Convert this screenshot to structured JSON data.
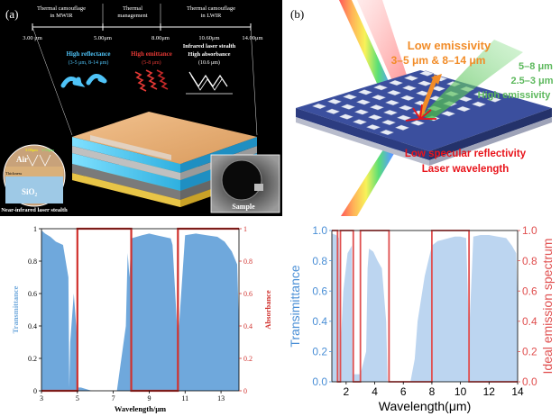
{
  "panel_a": {
    "label": "(a)",
    "regions": [
      {
        "title_line1": "Thermal camouflage",
        "title_line2": "in MWIR"
      },
      {
        "title_line1": "Thermal",
        "title_line2": "management"
      },
      {
        "title_line1": "Thermal camouflage",
        "title_line2": "in LWIR"
      }
    ],
    "wavelength_marks": [
      "3.00 μm",
      "5.00μm",
      "8.00μm",
      "10.60μm",
      "14.00μm"
    ],
    "features": [
      {
        "title": "High reflectance",
        "detail": "(3-5 μm, 8-14 μm)",
        "color": "#4fc3f7"
      },
      {
        "title": "High emittance",
        "detail": "(5-8 μm)",
        "color": "#e53935"
      },
      {
        "title": "Infrared laser stealth",
        "title2": "High absorbance",
        "detail": "(10.6 μm)",
        "color": "#ffffff"
      }
    ],
    "inset_labels": {
      "air": "Air",
      "substrate": "SiO₂",
      "thickness": "Thickness",
      "w1": "3.00μm",
      "w2": "1.55μm"
    },
    "inset_caption": "Near-infrared laser stealth",
    "photo_caption": "Sample"
  },
  "panel_b": {
    "label": "(b)",
    "low_emissivity": "Low emissivity",
    "low_emissivity_range": "3–5 μm & 8–14 μm",
    "high_bands_1": "5–8 μm",
    "high_bands_2": "2.5–3 μm",
    "high_emissivity": "High emissivity",
    "low_specular": "Low specular reflectivity",
    "laser_wavelength": "Laser wavelength",
    "colors": {
      "orange": "#f28c28",
      "green": "#5cb85c",
      "red": "#e8141b"
    }
  },
  "chart_c": {
    "chart_data": {
      "type": "area",
      "xlabel": "Wavelength/μm",
      "ylabel": "Transmittance",
      "ylabel_right": "Absorbance",
      "xlim": [
        3,
        14
      ],
      "ylim": [
        0,
        1
      ],
      "x_ticks": [
        "3",
        "5",
        "7",
        "9",
        "11",
        "13"
      ],
      "y_ticks": [
        "0",
        "0.2",
        "0.4",
        "0.6",
        "0.8",
        "1"
      ],
      "y_ticks_right": [
        "0",
        "0.2",
        "0.4",
        "0.6",
        "0.8",
        "1"
      ],
      "transmittance_x": [
        3.0,
        3.2,
        3.5,
        3.8,
        4.2,
        4.5,
        4.55,
        4.6,
        4.8,
        5.0,
        5.05,
        5.2,
        5.8,
        6.5,
        7.2,
        7.7,
        7.8,
        7.9,
        8.0,
        8.3,
        8.6,
        9.0,
        9.4,
        9.8,
        10.2,
        10.3,
        10.6,
        11.0,
        11.6,
        12.2,
        12.8,
        13.2,
        13.6,
        13.9,
        14.0
      ],
      "transmittance_y": [
        0.99,
        0.97,
        0.95,
        0.92,
        0.9,
        0.7,
        0.02,
        0.3,
        0.6,
        0.3,
        0.02,
        0.02,
        0.0,
        0.0,
        0.0,
        0.4,
        0.85,
        0.7,
        0.94,
        0.95,
        0.96,
        0.97,
        0.96,
        0.95,
        0.94,
        0.9,
        0.3,
        0.96,
        0.97,
        0.96,
        0.95,
        0.92,
        0.86,
        0.78,
        0.4
      ],
      "absorbance_x": [
        3.0,
        5.0,
        5.0,
        8.0,
        8.0,
        10.6,
        10.6,
        14.0
      ],
      "absorbance_y": [
        0,
        0,
        1,
        1,
        0,
        0,
        1,
        1
      ],
      "colors": {
        "fill": "#6fa8dc",
        "ideal": "#d0312d"
      }
    }
  },
  "chart_d": {
    "chart_data": {
      "type": "area",
      "xlabel": "Wavelength(μm)",
      "ylabel": "Transimittance",
      "ylabel_right": "Ideal emission spectrum",
      "xlim": [
        1,
        14
      ],
      "ylim": [
        0,
        1
      ],
      "x_ticks": [
        "2",
        "4",
        "6",
        "8",
        "10",
        "12",
        "14"
      ],
      "y_ticks": [
        "0.0",
        "0.2",
        "0.4",
        "0.6",
        "0.8",
        "1.0"
      ],
      "y_ticks_right": [
        "0.0",
        "0.2",
        "0.4",
        "0.6",
        "0.8",
        "1.0"
      ],
      "transmittance_x": [
        1.0,
        1.3,
        1.5,
        1.6,
        1.8,
        2.1,
        2.4,
        2.45,
        2.6,
        3.0,
        3.4,
        3.5,
        3.6,
        3.9,
        4.2,
        4.5,
        4.8,
        4.9,
        5.5,
        6.0,
        6.5,
        6.8,
        7.0,
        7.5,
        8.0,
        8.4,
        8.8,
        9.2,
        9.6,
        10.0,
        10.4,
        10.6,
        10.9,
        11.4,
        12.0,
        12.6,
        13.2,
        13.6,
        13.9,
        14.0
      ],
      "transmittance_y": [
        0.98,
        0.97,
        0.95,
        0.2,
        0.6,
        0.85,
        0.9,
        0.05,
        0.05,
        0.05,
        0.2,
        0.75,
        0.88,
        0.86,
        0.8,
        0.75,
        0.4,
        0.0,
        0.0,
        0.0,
        0.0,
        0.15,
        0.4,
        0.7,
        0.9,
        0.93,
        0.94,
        0.95,
        0.96,
        0.96,
        0.95,
        0.3,
        0.96,
        0.97,
        0.97,
        0.96,
        0.95,
        0.9,
        0.85,
        0.5
      ],
      "ideal_x": [
        1.0,
        1.4,
        1.4,
        1.6,
        1.6,
        2.5,
        2.5,
        3.0,
        3.0,
        5.0,
        5.0,
        8.0,
        8.0,
        10.6,
        10.6,
        14.0
      ],
      "ideal_y": [
        1,
        1,
        0,
        0,
        1,
        1,
        0,
        0,
        1,
        1,
        0,
        0,
        1,
        1,
        0,
        0
      ],
      "colors": {
        "fill": "#bcd5f0",
        "ideal": "#e05050",
        "left_axis": "#4a8fd6",
        "right_axis": "#e05050"
      }
    }
  }
}
